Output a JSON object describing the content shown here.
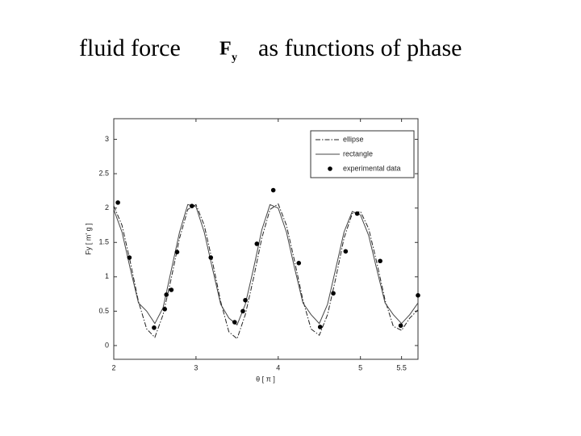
{
  "chart_data": {
    "type": "line",
    "title_left": "fluid force",
    "title_symbol": "F",
    "title_subscript": "y",
    "title_right": "as functions of phase",
    "xlabel": "θ [ π ]",
    "ylabel": "Fy [ m' g ]",
    "xlim": [
      2,
      5.7
    ],
    "xticks": [
      2,
      3,
      4,
      5,
      5.5
    ],
    "ylim": [
      -0.2,
      3.3
    ],
    "yticks": [
      0,
      0.5,
      1,
      1.5,
      2,
      2.5,
      3
    ],
    "legend": "upper right",
    "series": [
      {
        "name": "ellipse",
        "style": "dashdot",
        "color": "#222222",
        "x": [
          2.0,
          2.1,
          2.2,
          2.3,
          2.4,
          2.5,
          2.6,
          2.7,
          2.8,
          2.9,
          3.0,
          3.1,
          3.2,
          3.3,
          3.4,
          3.5,
          3.6,
          3.7,
          3.8,
          3.9,
          4.0,
          4.1,
          4.2,
          4.3,
          4.4,
          4.5,
          4.6,
          4.7,
          4.8,
          4.9,
          5.0,
          5.1,
          5.2,
          5.3,
          5.4,
          5.5,
          5.6,
          5.7
        ],
        "values": [
          2.03,
          1.75,
          1.22,
          0.64,
          0.24,
          0.12,
          0.45,
          0.98,
          1.56,
          1.98,
          2.05,
          1.75,
          1.22,
          0.64,
          0.2,
          0.1,
          0.45,
          0.98,
          1.56,
          1.98,
          2.06,
          1.75,
          1.22,
          0.66,
          0.24,
          0.15,
          0.45,
          0.98,
          1.56,
          1.92,
          1.95,
          1.7,
          1.2,
          0.66,
          0.28,
          0.22,
          0.4,
          0.52
        ]
      },
      {
        "name": "rectangle",
        "style": "solid",
        "color": "#444444",
        "x": [
          2.0,
          2.1,
          2.2,
          2.3,
          2.4,
          2.5,
          2.6,
          2.7,
          2.8,
          2.9,
          3.0,
          3.1,
          3.2,
          3.3,
          3.4,
          3.5,
          3.6,
          3.7,
          3.8,
          3.9,
          4.0,
          4.1,
          4.2,
          4.3,
          4.4,
          4.5,
          4.6,
          4.7,
          4.8,
          4.9,
          5.0,
          5.1,
          5.2,
          5.3,
          5.4,
          5.5,
          5.6,
          5.7
        ],
        "values": [
          1.98,
          1.65,
          1.12,
          0.62,
          0.5,
          0.32,
          0.55,
          1.1,
          1.65,
          2.05,
          2.02,
          1.65,
          1.12,
          0.6,
          0.4,
          0.3,
          0.6,
          1.12,
          1.68,
          2.05,
          2.0,
          1.65,
          1.12,
          0.62,
          0.45,
          0.32,
          0.6,
          1.12,
          1.65,
          1.95,
          1.9,
          1.6,
          1.1,
          0.62,
          0.45,
          0.32,
          0.45,
          0.62
        ]
      },
      {
        "name": "experimental data",
        "style": "marker",
        "color": "#000000",
        "x": [
          2.05,
          2.19,
          2.49,
          2.62,
          2.64,
          2.7,
          2.77,
          2.95,
          3.18,
          3.47,
          3.57,
          3.6,
          3.74,
          3.94,
          4.25,
          4.51,
          4.67,
          4.82,
          4.96,
          5.24,
          5.49,
          5.7
        ],
        "values": [
          2.08,
          1.28,
          0.26,
          0.53,
          0.74,
          0.81,
          1.36,
          2.03,
          1.28,
          0.34,
          0.5,
          0.66,
          1.48,
          2.26,
          1.2,
          0.27,
          0.76,
          1.37,
          1.92,
          1.23,
          0.29,
          0.73
        ]
      }
    ]
  }
}
